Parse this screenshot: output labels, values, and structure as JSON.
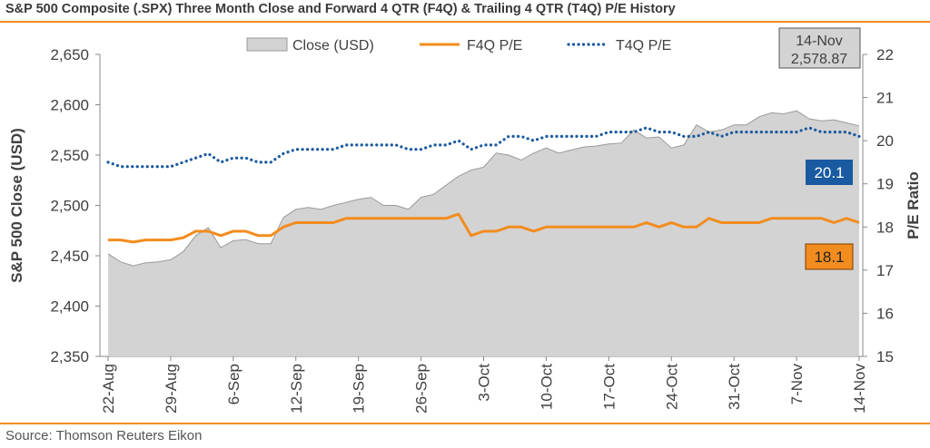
{
  "title": "S&P 500 Composite (.SPX) Three Month Close and Forward 4 QTR (F4Q) & Trailing 4 QTR (T4Q) P/E History",
  "source": "Source: Thomson Reuters Eikon",
  "colors": {
    "close_fill": "#d3d3d3",
    "close_line": "#9a9a9a",
    "f4q": "#f28c1e",
    "t4q": "#1a5aa0",
    "t4q_label_bg": "#1a5aa0",
    "f4q_label_bg": "#f28c1e"
  },
  "chart_data": {
    "type": "area+line",
    "legend": [
      "Close (USD)",
      "F4Q P/E",
      "T4Q P/E"
    ],
    "legend_placement": "top",
    "ylabel_left": "S&P 500 Close (USD)",
    "ylabel_right": "P/E Ratio",
    "ylim_left": [
      2350,
      2650
    ],
    "yticks_left": [
      "2,350",
      "2,400",
      "2,450",
      "2,500",
      "2,550",
      "2,600",
      "2,650"
    ],
    "ylim_right": [
      15,
      22
    ],
    "yticks_right": [
      "15",
      "16",
      "17",
      "18",
      "19",
      "20",
      "21",
      "22"
    ],
    "xtick_labels": [
      "22-Aug",
      "29-Aug",
      "6-Sep",
      "12-Sep",
      "19-Sep",
      "26-Sep",
      "3-Oct",
      "10-Oct",
      "17-Oct",
      "24-Oct",
      "31-Oct",
      "7-Nov",
      "14-Nov"
    ],
    "xtick_index": [
      0,
      5,
      10,
      15,
      20,
      25,
      30,
      35,
      40,
      45,
      50,
      55,
      60
    ],
    "grid": false,
    "annotation_box": {
      "line1": "14-Nov",
      "line2": "2,578.87"
    },
    "last_labels": {
      "t4q": "20.1",
      "f4q": "18.1"
    },
    "series": [
      {
        "name": "Close (USD)",
        "axis": "left",
        "values": [
          2452,
          2444,
          2440,
          2443,
          2444,
          2446,
          2454,
          2470,
          2478,
          2458,
          2465,
          2466,
          2462,
          2462,
          2488,
          2496,
          2498,
          2496,
          2500,
          2503,
          2506,
          2508,
          2500,
          2500,
          2496,
          2508,
          2511,
          2520,
          2529,
          2535,
          2538,
          2552,
          2550,
          2545,
          2552,
          2557,
          2552,
          2555,
          2558,
          2559,
          2561,
          2562,
          2575,
          2567,
          2568,
          2557,
          2560,
          2580,
          2573,
          2575,
          2580,
          2580,
          2588,
          2592,
          2591,
          2594,
          2586,
          2584,
          2585,
          2582,
          2579
        ]
      },
      {
        "name": "F4Q P/E",
        "axis": "right",
        "values": [
          17.7,
          17.7,
          17.65,
          17.7,
          17.7,
          17.7,
          17.75,
          17.9,
          17.9,
          17.8,
          17.9,
          17.9,
          17.8,
          17.8,
          18.0,
          18.1,
          18.1,
          18.1,
          18.1,
          18.2,
          18.2,
          18.2,
          18.2,
          18.2,
          18.2,
          18.2,
          18.2,
          18.2,
          18.3,
          17.8,
          17.9,
          17.9,
          18.0,
          18.0,
          17.9,
          18.0,
          18.0,
          18.0,
          18.0,
          18.0,
          18.0,
          18.0,
          18.0,
          18.1,
          18.0,
          18.1,
          18.0,
          18.0,
          18.2,
          18.1,
          18.1,
          18.1,
          18.1,
          18.2,
          18.2,
          18.2,
          18.2,
          18.2,
          18.1,
          18.2,
          18.1
        ]
      },
      {
        "name": "T4Q P/E",
        "axis": "right",
        "values": [
          19.5,
          19.4,
          19.4,
          19.4,
          19.4,
          19.4,
          19.5,
          19.6,
          19.7,
          19.5,
          19.6,
          19.6,
          19.5,
          19.5,
          19.7,
          19.8,
          19.8,
          19.8,
          19.8,
          19.9,
          19.9,
          19.9,
          19.9,
          19.9,
          19.8,
          19.8,
          19.9,
          19.9,
          20.0,
          19.8,
          19.9,
          19.9,
          20.1,
          20.1,
          20.0,
          20.1,
          20.1,
          20.1,
          20.1,
          20.1,
          20.2,
          20.2,
          20.2,
          20.3,
          20.2,
          20.2,
          20.1,
          20.1,
          20.2,
          20.1,
          20.2,
          20.2,
          20.2,
          20.2,
          20.2,
          20.2,
          20.3,
          20.2,
          20.2,
          20.2,
          20.1
        ]
      }
    ]
  }
}
